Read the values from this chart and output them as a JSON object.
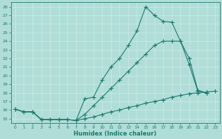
{
  "xlabel": "Humidex (Indice chaleur)",
  "bg_color": "#b0ddd8",
  "grid_color": "#c8ece8",
  "line_color": "#1a7a6e",
  "xlim": [
    -0.5,
    23.5
  ],
  "ylim": [
    14.5,
    28.5
  ],
  "xticks": [
    0,
    1,
    2,
    3,
    4,
    5,
    6,
    7,
    8,
    9,
    10,
    11,
    12,
    13,
    14,
    15,
    16,
    17,
    18,
    19,
    20,
    21,
    22,
    23
  ],
  "yticks": [
    15,
    16,
    17,
    18,
    19,
    20,
    21,
    22,
    23,
    24,
    25,
    26,
    27,
    28
  ],
  "line1_x": [
    0,
    1,
    2,
    3,
    4,
    5,
    6,
    7,
    8,
    9,
    10,
    11,
    12,
    13,
    14,
    15,
    16,
    17,
    18,
    19,
    20,
    21,
    22
  ],
  "line1_y": [
    16.1,
    15.8,
    15.8,
    14.9,
    14.9,
    14.9,
    14.9,
    14.8,
    17.3,
    17.5,
    19.5,
    21.0,
    22.0,
    23.5,
    25.2,
    28.0,
    27.0,
    26.3,
    26.2,
    24.0,
    21.3,
    18.2,
    18.0
  ],
  "line2_x": [
    0,
    1,
    2,
    3,
    4,
    5,
    6,
    7,
    8,
    9,
    10,
    11,
    12,
    13,
    14,
    15,
    16,
    17,
    18,
    19,
    20,
    21,
    22
  ],
  "line2_y": [
    16.1,
    15.8,
    15.8,
    14.9,
    14.9,
    14.9,
    14.9,
    14.8,
    15.5,
    16.5,
    17.5,
    18.5,
    19.5,
    20.5,
    21.5,
    22.5,
    23.5,
    24.0,
    24.0,
    24.0,
    22.0,
    18.3,
    18.0
  ],
  "line3_x": [
    0,
    1,
    2,
    3,
    4,
    5,
    6,
    7,
    8,
    9,
    10,
    11,
    12,
    13,
    14,
    15,
    16,
    17,
    18,
    19,
    20,
    21,
    22,
    23
  ],
  "line3_y": [
    16.1,
    15.8,
    15.8,
    14.9,
    14.9,
    14.9,
    14.9,
    14.8,
    15.0,
    15.2,
    15.5,
    15.8,
    16.0,
    16.3,
    16.5,
    16.8,
    17.0,
    17.2,
    17.5,
    17.7,
    17.9,
    18.0,
    18.1,
    18.2
  ]
}
